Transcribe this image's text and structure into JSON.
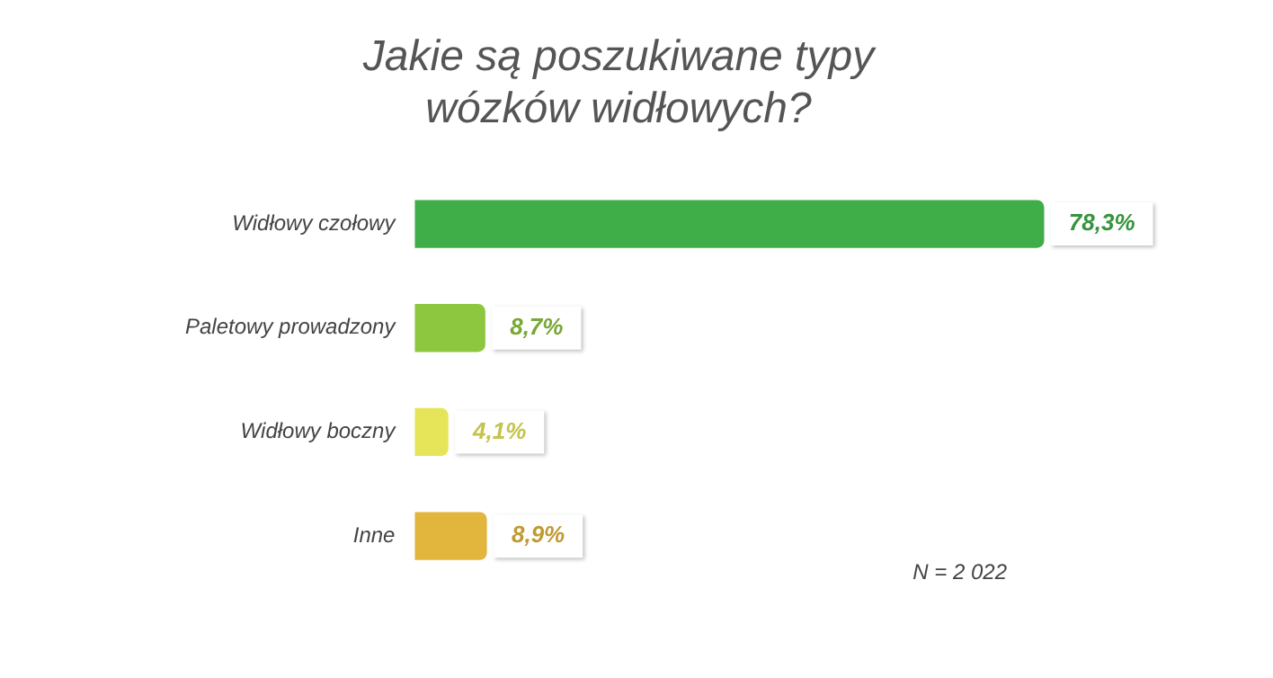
{
  "chart_data": {
    "type": "bar",
    "orientation": "horizontal",
    "title": "Jakie są poszukiwane typy\nwózków widłowych?",
    "categories": [
      "Widłowy czołowy",
      "Paletowy prowadzony",
      "Widłowy boczny",
      "Inne"
    ],
    "values": [
      78.3,
      8.7,
      4.1,
      8.9
    ],
    "colors": [
      "#3fae49",
      "#8dc63f",
      "#e6e55a",
      "#e2b53c"
    ],
    "value_labels": [
      "78,3%",
      "8,7%",
      "4,1%",
      "8,9%"
    ],
    "grid": false,
    "legend": false,
    "annotations": [
      "N = 2 022"
    ]
  }
}
